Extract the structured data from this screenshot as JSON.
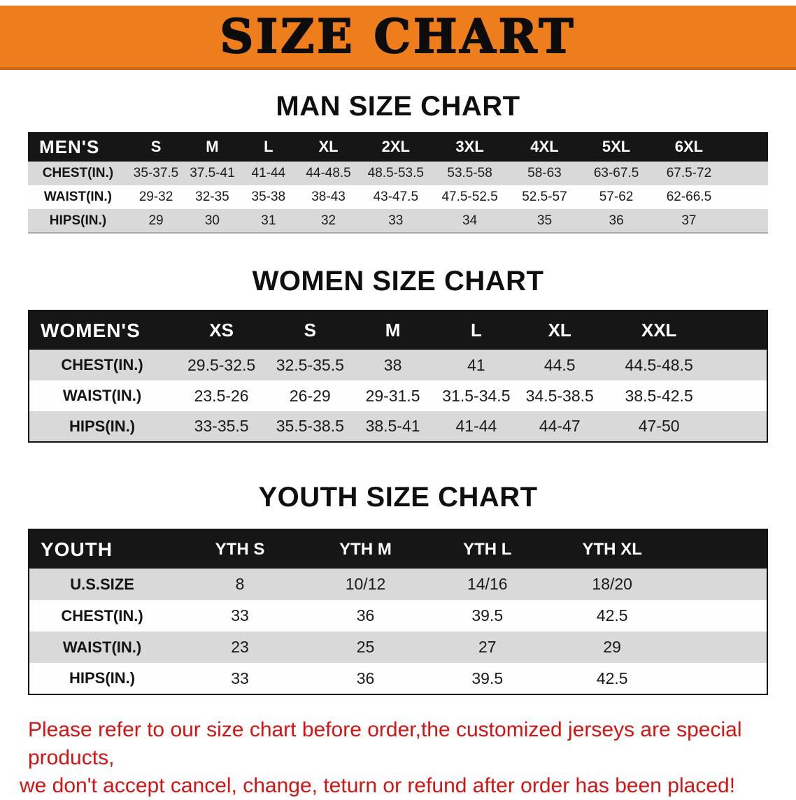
{
  "banner": {
    "title": "SIZE CHART"
  },
  "men": {
    "heading": "MAN SIZE CHART",
    "header": [
      "MEN'S",
      "S",
      "M",
      "L",
      "XL",
      "2XL",
      "3XL",
      "4XL",
      "5XL",
      "6XL"
    ],
    "rows": [
      [
        "CHEST(IN.)",
        "35-37.5",
        "37.5-41",
        "41-44",
        "44-48.5",
        "48.5-53.5",
        "53.5-58",
        "58-63",
        "63-67.5",
        "67.5-72"
      ],
      [
        "WAIST(IN.)",
        "29-32",
        "32-35",
        "35-38",
        "38-43",
        "43-47.5",
        "47.5-52.5",
        "52.5-57",
        "57-62",
        "62-66.5"
      ],
      [
        "HIPS(IN.)",
        "29",
        "30",
        "31",
        "32",
        "33",
        "34",
        "35",
        "36",
        "37"
      ]
    ]
  },
  "women": {
    "heading": "WOMEN SIZE CHART",
    "header": [
      "WOMEN'S",
      "XS",
      "S",
      "M",
      "L",
      "XL",
      "XXL"
    ],
    "rows": [
      [
        "CHEST(IN.)",
        "29.5-32.5",
        "32.5-35.5",
        "38",
        "41",
        "44.5",
        "44.5-48.5"
      ],
      [
        "WAIST(IN.)",
        "23.5-26",
        "26-29",
        "29-31.5",
        "31.5-34.5",
        "34.5-38.5",
        "38.5-42.5"
      ],
      [
        "HIPS(IN.)",
        "33-35.5",
        "35.5-38.5",
        "38.5-41",
        "41-44",
        "44-47",
        "47-50"
      ]
    ]
  },
  "youth": {
    "heading": "YOUTH SIZE CHART",
    "header": [
      "YOUTH",
      "YTH S",
      "YTH M",
      "YTH L",
      "YTH XL"
    ],
    "rows": [
      [
        "U.S.SIZE",
        "8",
        "10/12",
        "14/16",
        "18/20"
      ],
      [
        "CHEST(IN.)",
        "33",
        "36",
        "39.5",
        "42.5"
      ],
      [
        "WAIST(IN.)",
        "23",
        "25",
        "27",
        "29"
      ],
      [
        "HIPS(IN.)",
        "33",
        "36",
        "39.5",
        "42.5"
      ]
    ]
  },
  "footer": {
    "line1": "Please refer to our size chart before order,the customized jerseys are special products,",
    "line2": "we don't accept cancel, change, teturn or refund after order has been placed!"
  },
  "colors": {
    "banner_bg": "#ee7e1b",
    "header_bg": "#161616",
    "row_alt": "#d9d9d9",
    "footer_red": "#d61313"
  }
}
